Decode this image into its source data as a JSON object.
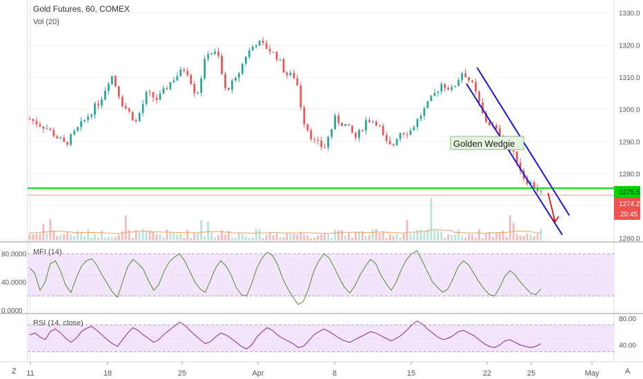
{
  "header": {
    "symbol": "Gold Futures, 60, COMEX",
    "volume_label": "Vol (20)"
  },
  "colors": {
    "up": "#26a69a",
    "down": "#ef5350",
    "channel": "#1616d8",
    "support": "#00e000",
    "arrow": "#e00000",
    "mfi_line": "#4f8a2b",
    "rsi_line": "#8e24aa",
    "band_fill": "#f3e5fb",
    "band_dash": "#b89cc8",
    "vol_ma": "#f0a060"
  },
  "annotation": {
    "label": "Golden Wedgie"
  },
  "price_tags": {
    "support": "1275.5",
    "last": "1274.2",
    "countdown": "20:45"
  },
  "panes": {
    "mfi_label": "MFI (14)",
    "rsi_label": "RSI (14, close)"
  },
  "bottom_buttons": {
    "left": "Z",
    "right": "A"
  },
  "chart_data": [
    {
      "type": "candlestick",
      "title": "Gold Futures, 60, COMEX",
      "x_ticks": [
        "11",
        "18",
        "25",
        "Apr",
        "8",
        "15",
        "22",
        "25",
        "May"
      ],
      "y_ticks": [
        1260.0,
        1270.0,
        1280.0,
        1290.0,
        1300.0,
        1310.0,
        1320.0,
        1330.0
      ],
      "ylim": [
        1259,
        1334
      ],
      "series_path": [
        [
          0,
          1297
        ],
        [
          5,
          1294
        ],
        [
          10,
          1289
        ],
        [
          15,
          1296
        ],
        [
          20,
          1303
        ],
        [
          23,
          1311
        ],
        [
          26,
          1302
        ],
        [
          30,
          1296
        ],
        [
          33,
          1305
        ],
        [
          36,
          1303
        ],
        [
          40,
          1309
        ],
        [
          44,
          1313
        ],
        [
          47,
          1304
        ],
        [
          50,
          1318
        ],
        [
          53,
          1317
        ],
        [
          55,
          1306
        ],
        [
          58,
          1309
        ],
        [
          61,
          1317
        ],
        [
          64,
          1321
        ],
        [
          67,
          1319
        ],
        [
          70,
          1316
        ],
        [
          72,
          1311
        ],
        [
          75,
          1310
        ],
        [
          77,
          1297
        ],
        [
          80,
          1290
        ],
        [
          83,
          1288
        ],
        [
          86,
          1297
        ],
        [
          89,
          1295
        ],
        [
          92,
          1291
        ],
        [
          95,
          1297
        ],
        [
          98,
          1296
        ],
        [
          100,
          1290
        ],
        [
          102,
          1288
        ],
        [
          104,
          1293
        ],
        [
          107,
          1293
        ],
        [
          110,
          1298
        ],
        [
          113,
          1303
        ],
        [
          116,
          1308
        ],
        [
          119,
          1306
        ],
        [
          122,
          1312
        ],
        [
          125,
          1307
        ],
        [
          128,
          1297
        ],
        [
          131,
          1294
        ],
        [
          134,
          1289
        ],
        [
          137,
          1285
        ],
        [
          139,
          1279
        ],
        [
          141,
          1277
        ],
        [
          144,
          1274.2
        ]
      ],
      "candle_count": 150,
      "horizontal_line": 1275.5,
      "last_price": 1274.2,
      "channel_upper": [
        [
          126,
          1313
        ],
        [
          152,
          1267
        ]
      ],
      "channel_lower": [
        [
          123,
          1308
        ],
        [
          150,
          1261
        ]
      ],
      "arrow": [
        [
          146,
          1274
        ],
        [
          148,
          1265
        ]
      ],
      "annotation": "Golden Wedgie"
    },
    {
      "type": "line",
      "name": "MFI (14)",
      "y_ticks": [
        0.0,
        40.0,
        80.0
      ],
      "band": [
        20,
        80
      ],
      "ylim": [
        0,
        90
      ],
      "values": [
        60,
        52,
        28,
        40,
        66,
        70,
        55,
        35,
        25,
        45,
        62,
        70,
        73,
        64,
        50,
        38,
        26,
        18,
        40,
        62,
        72,
        66,
        58,
        42,
        28,
        36,
        55,
        68,
        75,
        80,
        70,
        55,
        40,
        30,
        25,
        42,
        60,
        70,
        63,
        50,
        32,
        22,
        20,
        38,
        60,
        74,
        82,
        78,
        65,
        45,
        30,
        18,
        8,
        12,
        30,
        55,
        70,
        80,
        74,
        60,
        45,
        32,
        24,
        35,
        50,
        62,
        72,
        66,
        50,
        38,
        28,
        40,
        58,
        72,
        80,
        84,
        70,
        55,
        40,
        32,
        25,
        30,
        45,
        62,
        70,
        64,
        52,
        40,
        30,
        22,
        20,
        32,
        48,
        56,
        50,
        40,
        32,
        24,
        22,
        30
      ]
    },
    {
      "type": "line",
      "name": "RSI (14, close)",
      "y_ticks": [
        40.0,
        80.0
      ],
      "band": [
        30,
        70
      ],
      "ylim": [
        20,
        82
      ],
      "values": [
        55,
        58,
        52,
        48,
        60,
        64,
        58,
        50,
        44,
        50,
        60,
        65,
        68,
        62,
        55,
        48,
        42,
        38,
        48,
        58,
        66,
        62,
        55,
        50,
        44,
        48,
        56,
        62,
        68,
        74,
        70,
        62,
        55,
        48,
        42,
        45,
        52,
        58,
        55,
        50,
        44,
        38,
        34,
        40,
        52,
        60,
        66,
        62,
        55,
        50,
        46,
        42,
        36,
        38,
        46,
        55,
        60,
        64,
        60,
        55,
        50,
        46,
        44,
        48,
        52,
        56,
        60,
        58,
        54,
        50,
        46,
        50,
        55,
        62,
        70,
        76,
        72,
        64,
        58,
        52,
        48,
        50,
        54,
        60,
        62,
        58,
        54,
        48,
        42,
        38,
        36,
        40,
        46,
        48,
        44,
        40,
        38,
        36,
        38,
        42
      ]
    }
  ]
}
